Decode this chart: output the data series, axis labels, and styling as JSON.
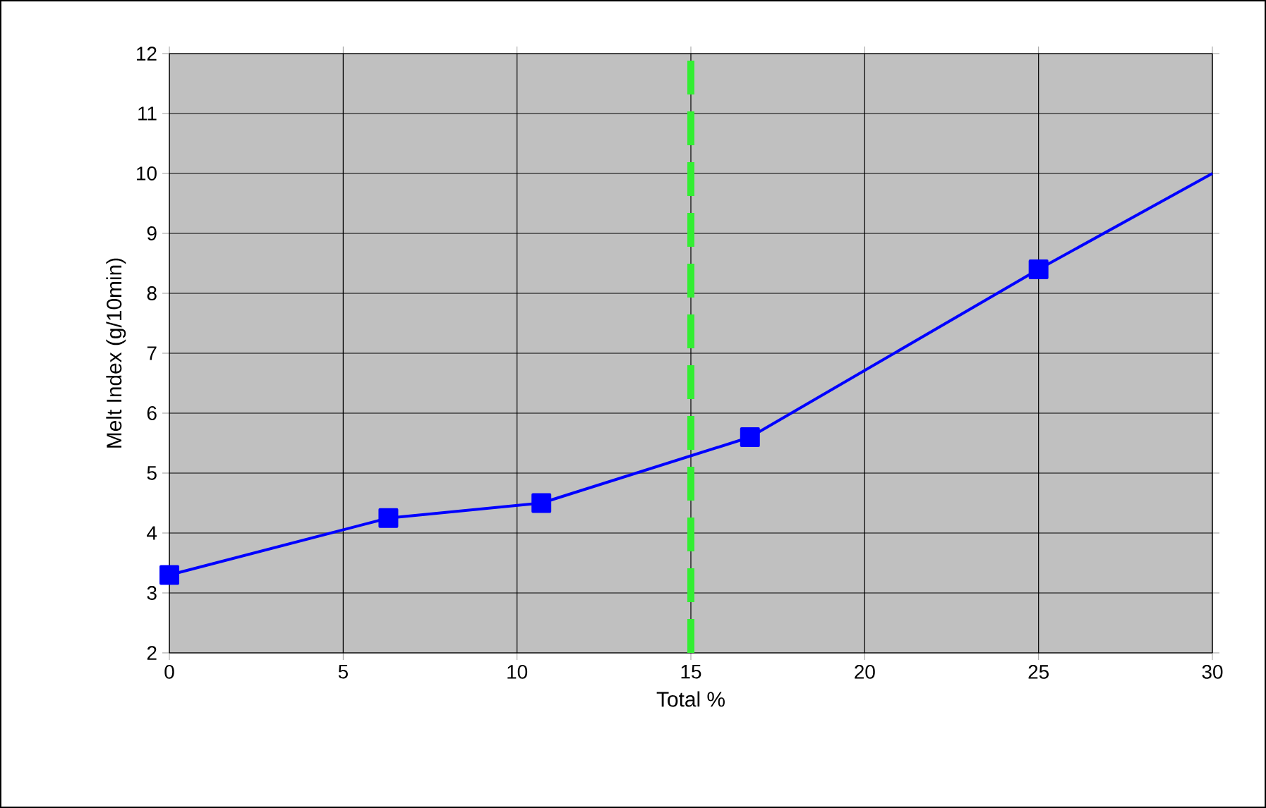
{
  "chart_data": {
    "type": "line",
    "xlabel": "Total %",
    "ylabel": "Melt Index (g/10min)",
    "xlim": [
      0,
      30
    ],
    "ylim": [
      2,
      12
    ],
    "xticks": [
      0,
      5,
      10,
      15,
      20,
      25,
      30
    ],
    "yticks": [
      2,
      3,
      4,
      5,
      6,
      7,
      8,
      9,
      10,
      11,
      12
    ],
    "grid": true,
    "marker": "square",
    "line_style": "solid",
    "series": [
      {
        "color": "#0000ff",
        "x": [
          0,
          6.3,
          10.7,
          16.7,
          25
        ],
        "values": [
          3.3,
          4.25,
          4.5,
          5.6,
          8.4
        ]
      },
      {
        "color": "#0000ff",
        "marker": "none",
        "x": [
          25,
          30
        ],
        "values": [
          8.4,
          10
        ]
      }
    ],
    "ref_lines": [
      {
        "axis": "x",
        "value": 15,
        "color": "#33ee33",
        "line_style": "dashed"
      }
    ]
  }
}
